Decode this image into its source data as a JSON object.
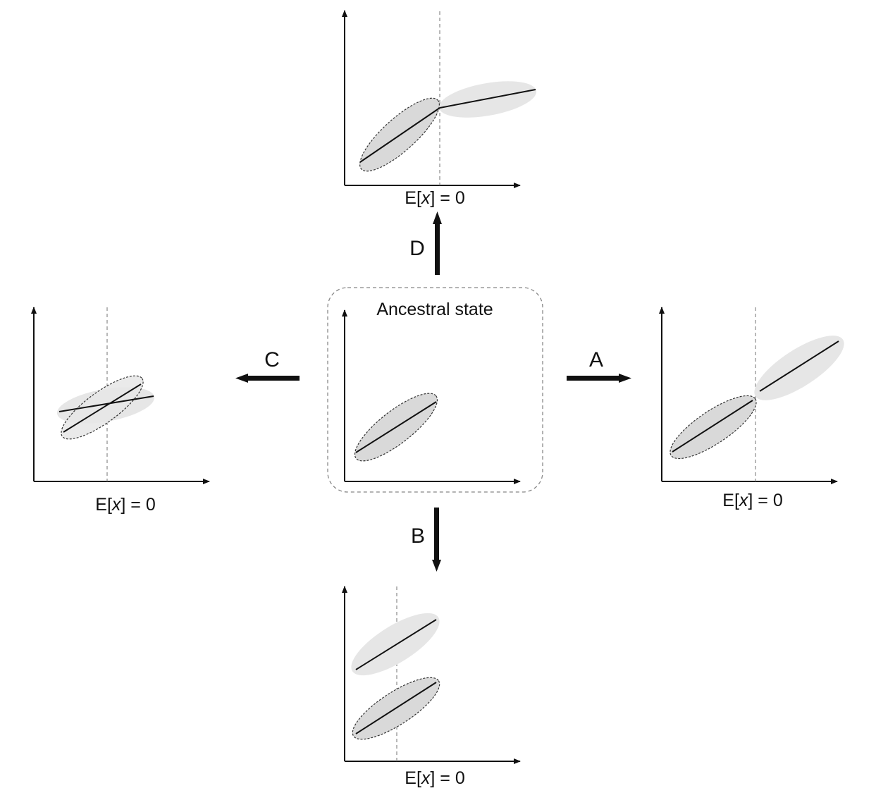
{
  "labels": {
    "top_xlabel_prefix": "E[",
    "top_xlabel_var": "x",
    "top_xlabel_suffix": "] = 0",
    "left_xlabel_prefix": "E[",
    "left_xlabel_var": "x",
    "left_xlabel_suffix": "] = 0",
    "right_xlabel_prefix": "E[",
    "right_xlabel_var": "x",
    "right_xlabel_suffix": "] = 0",
    "bottom_xlabel_prefix": "E[",
    "bottom_xlabel_var": "x",
    "bottom_xlabel_suffix": "] = 0",
    "ancestral_title": "Ancestral state"
  },
  "arrows": {
    "A": "A",
    "B": "B",
    "C": "C",
    "D": "D"
  },
  "colors": {
    "ancestral_fill": "#d9d9d9",
    "derived_fill": "#e6e6e6",
    "lines": "#111111"
  }
}
